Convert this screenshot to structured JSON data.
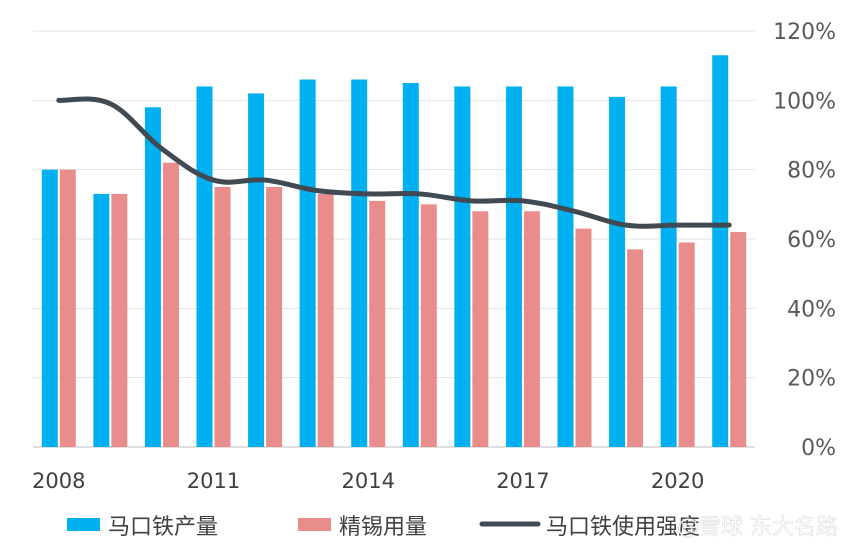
{
  "chart_data": {
    "type": "bar",
    "categories": [
      "2008",
      "2009",
      "2010",
      "2011",
      "2012",
      "2013",
      "2014",
      "2015",
      "2016",
      "2017",
      "2018",
      "2019",
      "2020",
      "2021"
    ],
    "x_tick_labels": [
      "2008",
      "2011",
      "2014",
      "2017",
      "2020"
    ],
    "y_tick_labels": [
      "0%",
      "20%",
      "40%",
      "60%",
      "80%",
      "100%",
      "120%"
    ],
    "ylim": [
      0,
      120
    ],
    "grid": true,
    "legend_position": "bottom",
    "series": [
      {
        "name": "马口铁产量",
        "kind": "bar",
        "color": "#00b0f0",
        "values": [
          80,
          73,
          98,
          104,
          102,
          106,
          106,
          105,
          104,
          104,
          104,
          101,
          104,
          113
        ]
      },
      {
        "name": "精锡用量",
        "kind": "bar",
        "color": "#e98c8c",
        "values": [
          80,
          73,
          82,
          75,
          75,
          73,
          71,
          70,
          68,
          68,
          63,
          57,
          59,
          62
        ]
      },
      {
        "name": "马口铁使用强度",
        "kind": "line",
        "color": "#404a53",
        "values": [
          100,
          99,
          86,
          77,
          77,
          74,
          73,
          73,
          71,
          71,
          68,
          64,
          64,
          64
        ]
      }
    ],
    "watermark": "@雪球 东大名路"
  }
}
